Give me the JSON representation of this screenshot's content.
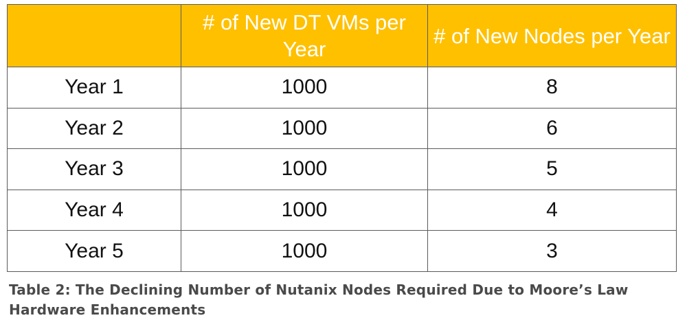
{
  "table": {
    "header": {
      "corner": "",
      "col_vms": "# of New DT VMs per Year",
      "col_nodes": "# of New Nodes per Year"
    },
    "rows": [
      {
        "year": "Year 1",
        "vms": "1000",
        "nodes": "8"
      },
      {
        "year": "Year 2",
        "vms": "1000",
        "nodes": "6"
      },
      {
        "year": "Year 3",
        "vms": "1000",
        "nodes": "5"
      },
      {
        "year": "Year 4",
        "vms": "1000",
        "nodes": "4"
      },
      {
        "year": "Year 5",
        "vms": "1000",
        "nodes": "3"
      }
    ]
  },
  "caption": "Table 2: The Declining Number of Nutanix Nodes Required Due to Moore’s Law Hardware Enhancements",
  "colors": {
    "header_background": "#FFC000",
    "header_text": "#FFFFFF",
    "border": "#5A5A5A",
    "caption_text": "#4A4A4A"
  }
}
